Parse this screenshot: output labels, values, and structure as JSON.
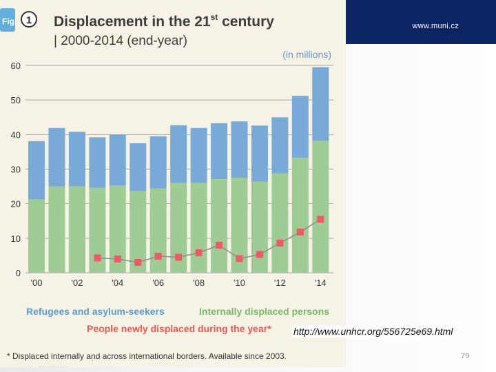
{
  "slide": {
    "site_label": "www.muni.cz",
    "source_url": "http://www.unhcr.org/556725e69.html",
    "page_number": "79",
    "footer_dots": "▫▫▫▫▫▫▫▫▫▫▫▫▫▫"
  },
  "figure": {
    "fig_tag": "Fig.",
    "fig_number": "1",
    "title": "Displacement in the 21",
    "title_sup": "st",
    "title_end": " century",
    "subtitle": "| 2000-2014 (end-year)",
    "unit_note": "(in millions)",
    "footnote": "* Displaced internally and across international borders. Available since 2003."
  },
  "colors": {
    "refugees": "#79a9d6",
    "idp": "#9fcc94",
    "new_displaced": "#ef5a66",
    "line": "#8c8c8c",
    "badge": "#62aedc",
    "title": "#3c3c3c",
    "gridline": "#a8a8a8",
    "legend_refugees_text": "#5b9bd0",
    "legend_idp_text": "#78b86b",
    "legend_new_text": "#e8574f"
  },
  "chart_data": {
    "type": "bar",
    "stacked": true,
    "title": "Displacement in the 21st century",
    "subtitle": "2000-2014 (end-year)",
    "ylabel": "(in millions)",
    "ylim": [
      0,
      60
    ],
    "yticks": [
      "0",
      "10",
      "20",
      "30",
      "40",
      "50",
      "60"
    ],
    "categories": [
      "2000",
      "2001",
      "2002",
      "2003",
      "2004",
      "2005",
      "2006",
      "2007",
      "2008",
      "2009",
      "2010",
      "2011",
      "2012",
      "2013",
      "2014"
    ],
    "xtick_labels": [
      "'00",
      "",
      "'02",
      "",
      "'04",
      "",
      "'06",
      "",
      "'08",
      "",
      "'10",
      "",
      "'12",
      "",
      "'14"
    ],
    "grid": true,
    "legend_position": "bottom",
    "series": [
      {
        "name": "Internally displaced persons",
        "kind": "bar",
        "values": [
          21.2,
          25.0,
          25.0,
          24.6,
          25.3,
          23.7,
          24.4,
          26.0,
          26.0,
          27.1,
          27.5,
          26.4,
          28.8,
          33.3,
          38.2
        ]
      },
      {
        "name": "Refugees and asylum-seekers",
        "kind": "bar",
        "values": [
          16.9,
          16.9,
          15.8,
          14.6,
          14.7,
          13.8,
          15.1,
          16.7,
          15.9,
          16.2,
          16.3,
          16.2,
          16.2,
          17.9,
          21.3
        ]
      },
      {
        "name": "People newly displaced during the year*",
        "kind": "line",
        "values": [
          null,
          null,
          null,
          4.3,
          4.0,
          3.0,
          4.8,
          4.5,
          5.8,
          8.0,
          4.1,
          5.3,
          8.6,
          11.8,
          15.5
        ]
      }
    ]
  }
}
